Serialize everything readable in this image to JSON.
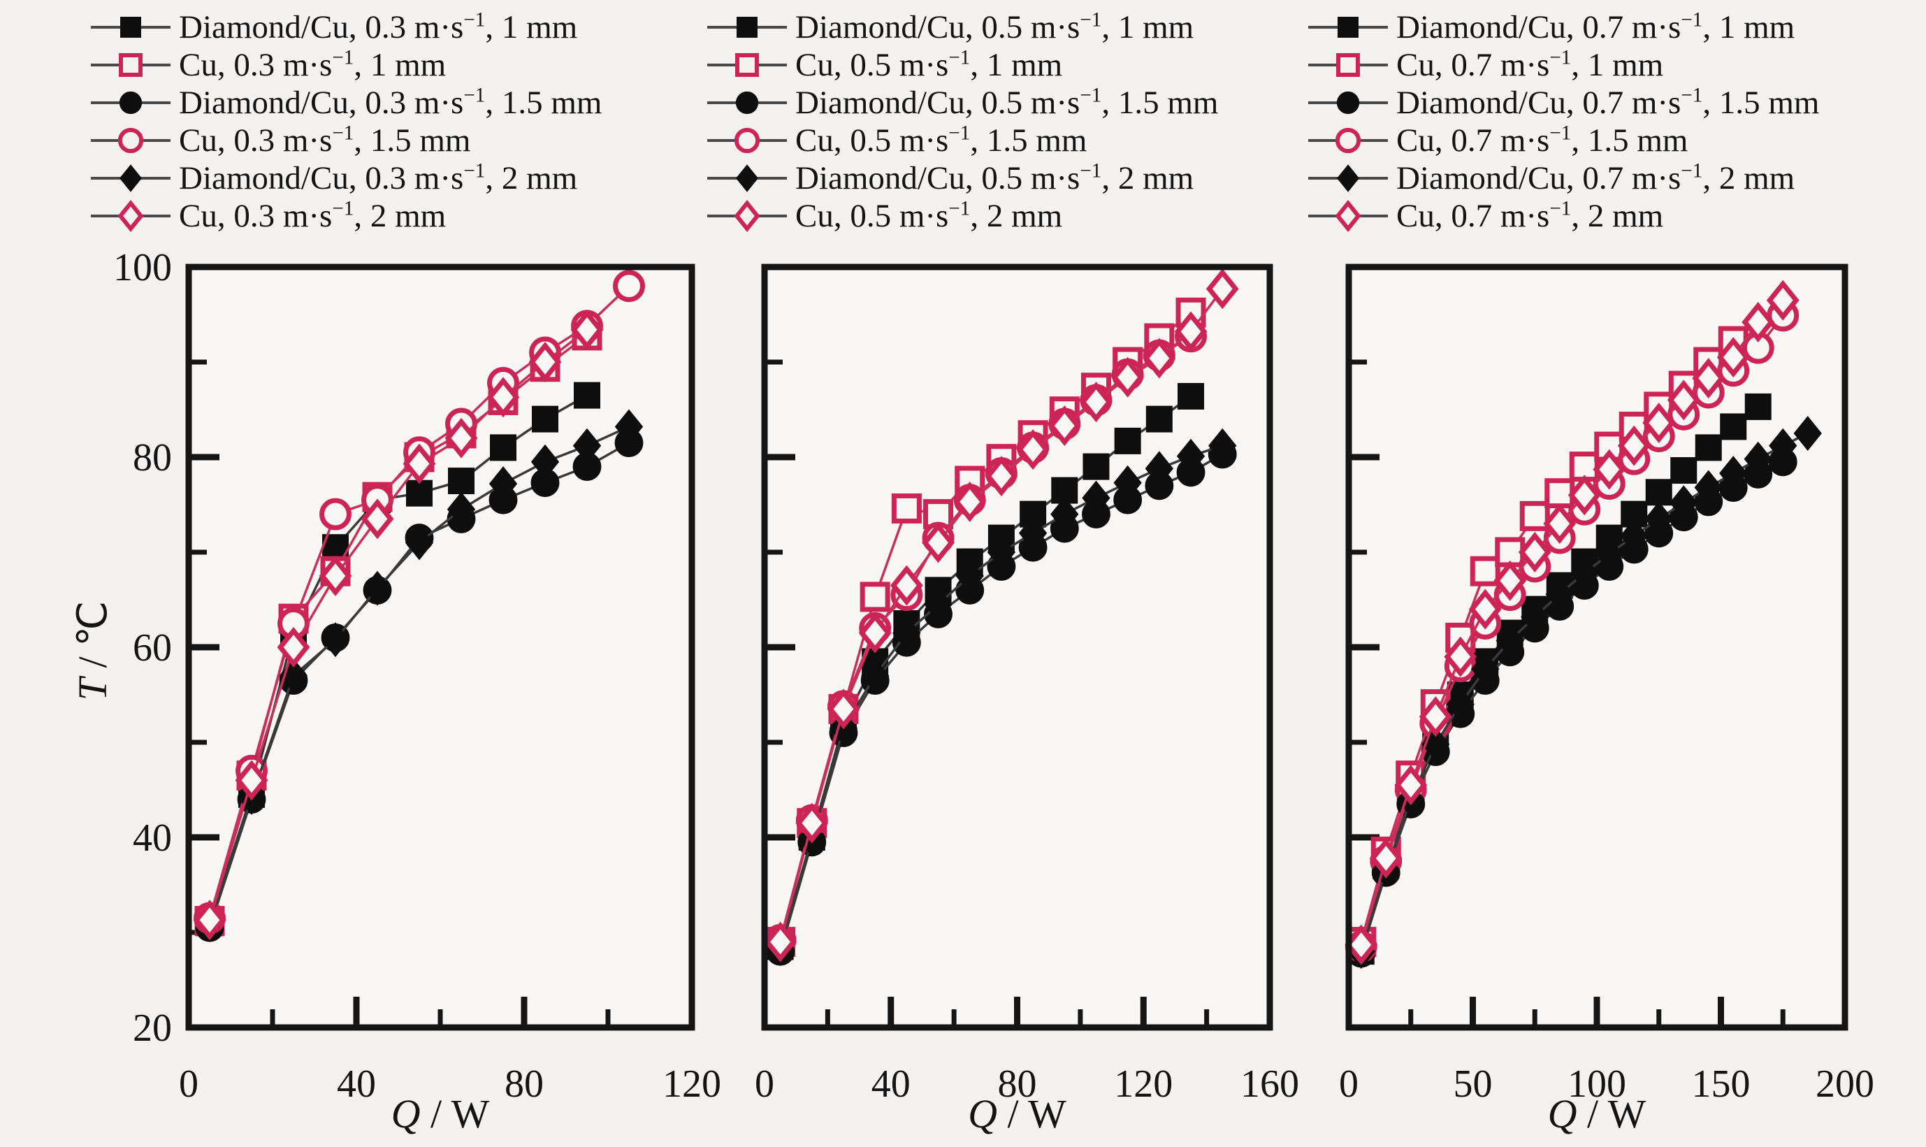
{
  "figure": {
    "background": "#f3f2f1",
    "plot_background": "#f8f7f6",
    "frame_color": "#151515",
    "black_marker_color": "#0e0e0e",
    "black_line_color": "#3a3a3a",
    "pink_marker_color": "#cb2455",
    "pink_line_color": "#c73059",
    "tick_label_color": "#141414"
  },
  "axes": {
    "xlabel": {
      "italic": "Q",
      "rest": " / W"
    },
    "ylabel": {
      "italic": "T",
      "rest": " / ℃"
    }
  },
  "legend": {
    "columns": [
      {
        "items": [
          {
            "pre": "Diamond/Cu, 0.3 m·s",
            "sup": "−1",
            "post": ", 1 mm",
            "marker": "square",
            "filled": true
          },
          {
            "pre": "Cu, 0.3  m·s",
            "sup": "−1",
            "post": ", 1 mm",
            "marker": "square",
            "filled": false
          },
          {
            "pre": "Diamond/Cu, 0.3 m·s",
            "sup": "−1",
            "post": ", 1.5 mm",
            "marker": "circle",
            "filled": true
          },
          {
            "pre": "Cu, 0.3  m·s",
            "sup": "−1",
            "post": ", 1.5 mm",
            "marker": "circle",
            "filled": false
          },
          {
            "pre": "Diamond/Cu, 0.3 m·s",
            "sup": "−1",
            "post": ", 2 mm",
            "marker": "diamond",
            "filled": true
          },
          {
            "pre": "Cu, 0.3 m·s",
            "sup": "−1",
            "post": ", 2 mm",
            "marker": "diamond",
            "filled": false
          }
        ]
      },
      {
        "items": [
          {
            "pre": "Diamond/Cu, 0.5 m·s",
            "sup": "−1",
            "post": ", 1 mm",
            "marker": "square",
            "filled": true
          },
          {
            "pre": "Cu, 0.5 m·s",
            "sup": "−1",
            "post": ", 1 mm",
            "marker": "square",
            "filled": false
          },
          {
            "pre": "Diamond/Cu, 0.5 m·s",
            "sup": "−1",
            "post": ", 1.5 mm",
            "marker": "circle",
            "filled": true
          },
          {
            "pre": "Cu, 0.5 m·s",
            "sup": "−1",
            "post": ", 1.5 mm",
            "marker": "circle",
            "filled": false
          },
          {
            "pre": "Diamond/Cu, 0.5 m·s",
            "sup": "−1",
            "post": ", 2 mm",
            "marker": "diamond",
            "filled": true
          },
          {
            "pre": "Cu, 0.5 m·s",
            "sup": "−1",
            "post": ", 2 mm",
            "marker": "diamond",
            "filled": false
          }
        ]
      },
      {
        "items": [
          {
            "pre": "Diamond/Cu, 0.7 m·s",
            "sup": "−1",
            "post": ", 1 mm",
            "marker": "square",
            "filled": true
          },
          {
            "pre": "Cu, 0.7 m·s",
            "sup": "−1",
            "post": ", 1 mm",
            "marker": "square",
            "filled": false
          },
          {
            "pre": "Diamond/Cu, 0.7 m·s",
            "sup": "−1",
            "post": ", 1.5 mm",
            "marker": "circle",
            "filled": true
          },
          {
            "pre": "Cu, 0.7 m·s",
            "sup": "−1",
            "post": ", 1.5 mm",
            "marker": "circle",
            "filled": false
          },
          {
            "pre": "Diamond/Cu, 0.7 m·s",
            "sup": "−1",
            "post": ", 2 mm",
            "marker": "diamond",
            "filled": true
          },
          {
            "pre": "Cu, 0.7 m·s",
            "sup": "−1",
            "post": ", 2 mm",
            "marker": "diamond",
            "filled": false
          }
        ]
      }
    ]
  },
  "chart_data": {
    "type": "line",
    "title": "",
    "xlabel": "Q / W",
    "ylabel": "T / °C",
    "grid": false,
    "legend_position": "top",
    "panels": [
      {
        "velocity": "0.3 m·s−1",
        "xlim": [
          0,
          120
        ],
        "ylim": [
          20,
          100
        ],
        "xticks": [
          0,
          40,
          80,
          120
        ],
        "xticks_minor": [
          20,
          60,
          100
        ],
        "yticks": [
          20,
          40,
          60,
          80,
          100
        ],
        "yticks_minor": [
          30,
          50,
          70,
          90
        ],
        "show_ytick_labels": true,
        "series": [
          {
            "name": "Diamond/Cu, 0.3 m·s−1, 1 mm",
            "marker": "square",
            "filled": true,
            "x": [
              5,
              15,
              25,
              35,
              45,
              55,
              65,
              75,
              85,
              95
            ],
            "y": [
              31,
              44.5,
              61.5,
              70.5,
              75.5,
              76.2,
              77.5,
              81,
              84,
              86.5
            ]
          },
          {
            "name": "Cu, 0.3 m·s−1, 1 mm",
            "marker": "square",
            "filled": false,
            "x": [
              5,
              15,
              25,
              35,
              45,
              55,
              65,
              75,
              85,
              95
            ],
            "y": [
              31.2,
              46.5,
              63,
              68,
              75.8,
              80,
              82.5,
              86,
              89.5,
              92.8
            ]
          },
          {
            "name": "Diamond/Cu, 0.3 m·s−1, 1.5 mm",
            "marker": "circle",
            "filled": true,
            "x": [
              5,
              15,
              25,
              35,
              45,
              55,
              65,
              75,
              85,
              95,
              105
            ],
            "y": [
              30.5,
              44,
              56.5,
              61,
              66,
              71.5,
              73.5,
              75.5,
              77.3,
              79,
              81.5
            ]
          },
          {
            "name": "Cu, 0.3 m·s−1, 1.5 mm",
            "marker": "circle",
            "filled": false,
            "x": [
              5,
              15,
              25,
              35,
              45,
              55,
              65,
              75,
              85,
              95,
              105
            ],
            "y": [
              31.5,
              47,
              62.5,
              74,
              75.5,
              80.5,
              83.5,
              87.8,
              91,
              93.8,
              98
            ]
          },
          {
            "name": "Diamond/Cu, 0.3 m·s−1, 2 mm",
            "marker": "diamond",
            "filled": true,
            "x": [
              5,
              15,
              25,
              35,
              45,
              55,
              65,
              75,
              85,
              95,
              105
            ],
            "y": [
              31,
              44.2,
              57,
              60.8,
              66.2,
              71,
              74.5,
              77.2,
              79.5,
              81.2,
              83.2
            ]
          },
          {
            "name": "Cu, 0.3 m·s−1, 2 mm",
            "marker": "diamond",
            "filled": false,
            "x": [
              5,
              15,
              25,
              35,
              45,
              55,
              65,
              75,
              85,
              95
            ],
            "y": [
              31.3,
              46,
              60,
              67.5,
              73.5,
              79.3,
              82,
              86.3,
              90,
              93.4
            ]
          }
        ]
      },
      {
        "velocity": "0.5 m·s−1",
        "xlim": [
          0,
          160
        ],
        "ylim": [
          20,
          100
        ],
        "xticks": [
          0,
          40,
          80,
          120,
          160
        ],
        "xticks_minor": [
          20,
          60,
          100,
          140
        ],
        "yticks": [
          20,
          40,
          60,
          80,
          100
        ],
        "yticks_minor": [
          30,
          50,
          70,
          90
        ],
        "show_ytick_labels": false,
        "series": [
          {
            "name": "Diamond/Cu, 0.5 m·s−1, 1 mm",
            "marker": "square",
            "filled": true,
            "x": [
              5,
              15,
              25,
              35,
              45,
              55,
              65,
              75,
              85,
              95,
              105,
              115,
              125,
              135
            ],
            "y": [
              28.5,
              40,
              52,
              58.5,
              62.5,
              66,
              69,
              71.5,
              74,
              76.5,
              79,
              81.7,
              84,
              86.4
            ]
          },
          {
            "name": "Cu, 0.5 m·s−1, 1 mm",
            "marker": "square",
            "filled": false,
            "x": [
              5,
              15,
              25,
              35,
              45,
              55,
              65,
              75,
              85,
              95,
              105,
              115,
              125,
              135
            ],
            "y": [
              29,
              41.5,
              53.5,
              65.3,
              74.6,
              74,
              77.5,
              79.8,
              82.3,
              84.8,
              87.3,
              90,
              92.5,
              95.2
            ]
          },
          {
            "name": "Diamond/Cu, 0.5 m·s−1, 1.5 mm",
            "marker": "circle",
            "filled": true,
            "x": [
              5,
              15,
              25,
              35,
              45,
              55,
              65,
              75,
              85,
              95,
              105,
              115,
              125,
              135,
              145
            ],
            "y": [
              28,
              39.5,
              51,
              56.5,
              60.5,
              63.5,
              66,
              68.5,
              70.5,
              72.5,
              74,
              75.5,
              77,
              78.4,
              80.3
            ]
          },
          {
            "name": "Cu, 0.5 m·s−1, 1.5 mm",
            "marker": "circle",
            "filled": false,
            "x": [
              5,
              15,
              25,
              35,
              45,
              55,
              65,
              75,
              85,
              95,
              105,
              115,
              125,
              135
            ],
            "y": [
              29.2,
              41.8,
              53.8,
              62,
              65.5,
              71.5,
              75.5,
              78.3,
              81,
              83.5,
              86,
              88.7,
              90.7,
              92.7
            ]
          },
          {
            "name": "Diamond/Cu, 0.5 m·s−1, 2 mm",
            "marker": "diamond",
            "filled": true,
            "x": [
              5,
              15,
              25,
              35,
              45,
              55,
              65,
              75,
              85,
              95,
              105,
              115,
              125,
              135,
              145
            ],
            "y": [
              28.3,
              39.8,
              51.5,
              57,
              61.5,
              64.5,
              67.5,
              70,
              72,
              74,
              75.7,
              77.3,
              78.8,
              80.1,
              81.2
            ]
          },
          {
            "name": "Cu, 0.5 m·s−1, 2 mm",
            "marker": "diamond",
            "filled": false,
            "x": [
              5,
              15,
              25,
              35,
              45,
              55,
              65,
              75,
              85,
              95,
              105,
              115,
              125,
              135,
              145
            ],
            "y": [
              29,
              41.5,
              53.5,
              61.5,
              66.5,
              71,
              75.3,
              78,
              80.8,
              83.3,
              85.8,
              88.4,
              90.4,
              93.2,
              97.7
            ]
          }
        ]
      },
      {
        "velocity": "0.7 m·s−1",
        "xlim": [
          0,
          200
        ],
        "ylim": [
          20,
          100
        ],
        "xticks": [
          0,
          50,
          100,
          150,
          200
        ],
        "xticks_minor": [
          25,
          75,
          125,
          175
        ],
        "yticks": [
          20,
          40,
          60,
          80,
          100
        ],
        "yticks_minor": [
          30,
          50,
          70,
          90
        ],
        "show_ytick_labels": false,
        "series": [
          {
            "name": "Diamond/Cu, 0.7 m·s−1, 1 mm",
            "marker": "square",
            "filled": true,
            "x": [
              5,
              15,
              25,
              35,
              45,
              55,
              65,
              75,
              85,
              95,
              105,
              115,
              125,
              135,
              145,
              155,
              165
            ],
            "y": [
              28,
              37,
              44.5,
              50.5,
              55,
              58.5,
              61.5,
              64,
              66.5,
              69,
              71.5,
              74,
              76.3,
              78.6,
              81,
              83.2,
              85.3
            ]
          },
          {
            "name": "Cu, 0.7 m·s−1, 1 mm",
            "marker": "square",
            "filled": false,
            "x": [
              5,
              15,
              25,
              35,
              45,
              55,
              65,
              75,
              85,
              95,
              105,
              115,
              125,
              135,
              145,
              155
            ],
            "y": [
              29,
              38.5,
              46.5,
              54,
              61,
              68,
              70,
              73.8,
              76.2,
              79,
              81.1,
              83.2,
              85.3,
              87.5,
              90,
              92.2
            ]
          },
          {
            "name": "Diamond/Cu, 0.7 m·s−1, 1.5 mm",
            "marker": "circle",
            "filled": true,
            "x": [
              5,
              15,
              25,
              35,
              45,
              55,
              65,
              75,
              85,
              95,
              105,
              115,
              125,
              135,
              145,
              155,
              165,
              175
            ],
            "y": [
              27.8,
              36.3,
              43.5,
              49,
              53,
              56.5,
              59.5,
              62,
              64.3,
              66.5,
              68.5,
              70.3,
              72,
              73.7,
              75.3,
              76.8,
              78.2,
              79.5
            ]
          },
          {
            "name": "Cu, 0.7 m·s−1, 1.5 mm",
            "marker": "circle",
            "filled": false,
            "x": [
              5,
              15,
              25,
              35,
              45,
              55,
              65,
              75,
              85,
              95,
              105,
              115,
              125,
              135,
              145,
              155,
              165,
              175
            ],
            "y": [
              28.5,
              37.5,
              45,
              52,
              58,
              62.5,
              65.5,
              68.5,
              71.5,
              74.5,
              77.2,
              79.8,
              82.2,
              84.5,
              86.8,
              89.1,
              91.5,
              94.9
            ]
          },
          {
            "name": "Diamond/Cu, 0.7 m·s−1, 2 mm",
            "marker": "diamond",
            "filled": true,
            "x": [
              5,
              15,
              25,
              35,
              45,
              55,
              65,
              75,
              85,
              95,
              105,
              115,
              125,
              135,
              145,
              155,
              165,
              175,
              185
            ],
            "y": [
              28,
              36.6,
              44,
              49.8,
              54,
              57.7,
              60.7,
              63.2,
              65.6,
              67.8,
              69.8,
              71.7,
              73.5,
              75.2,
              76.8,
              78.3,
              79.8,
              81.2,
              82.5
            ]
          },
          {
            "name": "Cu, 0.7 m·s−1, 2 mm",
            "marker": "diamond",
            "filled": false,
            "x": [
              5,
              15,
              25,
              35,
              45,
              55,
              65,
              75,
              85,
              95,
              105,
              115,
              125,
              135,
              145,
              155,
              165,
              175
            ],
            "y": [
              28.7,
              37.8,
              45.5,
              52.7,
              59,
              64,
              67,
              70,
              73,
              76,
              78.7,
              81.2,
              83.6,
              86,
              88.3,
              90.5,
              94.2,
              96.5
            ]
          }
        ]
      }
    ]
  }
}
